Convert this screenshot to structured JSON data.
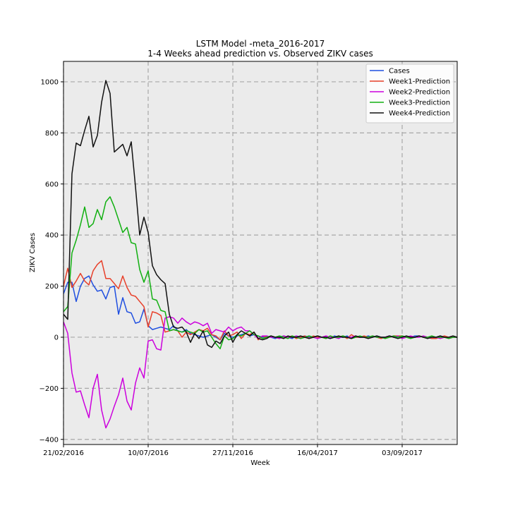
{
  "chart_data": {
    "type": "line",
    "title": "LSTM Model -meta_2016-2017",
    "subtitle": "1-4 Weeks ahead prediction vs. Observed ZIKV cases",
    "xlabel": "Week",
    "ylabel": "ZIKV Cases",
    "x_start": "21/02/2016",
    "x_step_days": 7,
    "x_ticks": [
      {
        "label": "21/02/2016",
        "index": 0
      },
      {
        "label": "10/07/2016",
        "index": 20
      },
      {
        "label": "27/11/2016",
        "index": 40
      },
      {
        "label": "16/04/2017",
        "index": 60
      },
      {
        "label": "03/09/2017",
        "index": 80
      }
    ],
    "xlim": [
      0,
      93
    ],
    "ylim": [
      -420,
      1080
    ],
    "y_ticks": [
      -400,
      -200,
      0,
      200,
      400,
      600,
      800,
      1000
    ],
    "grid": true,
    "legend_position": "top-right",
    "series": [
      {
        "name": "Cases",
        "color": "#1f4fe0",
        "values": [
          170,
          215,
          215,
          140,
          200,
          230,
          240,
          205,
          180,
          185,
          150,
          195,
          200,
          90,
          155,
          100,
          95,
          55,
          60,
          110,
          45,
          30,
          35,
          40,
          35,
          30,
          45,
          25,
          20,
          30,
          15,
          10,
          5,
          0,
          5,
          10,
          0,
          -10,
          15,
          5,
          0,
          5,
          10,
          15,
          5,
          10,
          5,
          0,
          5,
          0,
          -5,
          0,
          5,
          0,
          -5,
          5,
          0,
          5,
          0,
          0,
          5,
          0,
          0,
          -5,
          5,
          0,
          0,
          5,
          -5,
          0,
          0,
          0,
          5,
          0,
          5,
          0,
          0,
          5,
          0,
          0,
          5,
          0,
          0,
          5,
          5,
          0,
          0,
          -5,
          0,
          5,
          0,
          0,
          0,
          0
        ]
      },
      {
        "name": "Week1-Prediction",
        "color": "#e8402a",
        "values": [
          200,
          270,
          195,
          220,
          250,
          220,
          205,
          260,
          285,
          300,
          230,
          230,
          210,
          190,
          240,
          195,
          165,
          160,
          140,
          120,
          40,
          100,
          95,
          85,
          20,
          25,
          30,
          25,
          0,
          20,
          10,
          20,
          30,
          25,
          35,
          10,
          5,
          -10,
          25,
          5,
          10,
          20,
          -5,
          15,
          10,
          20,
          -10,
          5,
          0,
          5,
          0,
          -5,
          5,
          0,
          5,
          -5,
          0,
          5,
          -5,
          5,
          0,
          0,
          -5,
          5,
          0,
          0,
          5,
          -5,
          10,
          0,
          0,
          5,
          0,
          5,
          0,
          -5,
          0,
          0,
          5,
          5,
          5,
          0,
          0,
          0,
          5,
          0,
          0,
          -5,
          -5,
          0,
          5,
          0,
          0,
          0
        ]
      },
      {
        "name": "Week2-Prediction",
        "color": "#cc00dd",
        "values": [
          60,
          15,
          -140,
          -215,
          -210,
          -265,
          -315,
          -200,
          -145,
          -285,
          -355,
          -320,
          -270,
          -225,
          -160,
          -250,
          -285,
          -180,
          -120,
          -160,
          -15,
          -10,
          -45,
          -50,
          75,
          80,
          75,
          55,
          75,
          60,
          50,
          60,
          55,
          45,
          55,
          15,
          30,
          25,
          20,
          40,
          25,
          35,
          40,
          25,
          25,
          10,
          -5,
          5,
          5,
          0,
          0,
          -5,
          5,
          0,
          0,
          5,
          -5,
          0,
          5,
          0,
          -5,
          0,
          5,
          0,
          0,
          -5,
          5,
          0,
          0,
          5,
          0,
          0,
          -5,
          5,
          0,
          0,
          0,
          5,
          0,
          5,
          -5,
          0,
          5,
          0,
          0,
          5,
          0,
          0,
          0,
          -5,
          0,
          -5,
          0,
          0
        ]
      },
      {
        "name": "Week3-Prediction",
        "color": "#11b011",
        "values": [
          100,
          120,
          330,
          380,
          440,
          510,
          430,
          445,
          500,
          460,
          530,
          550,
          510,
          460,
          410,
          430,
          370,
          365,
          265,
          215,
          260,
          150,
          145,
          105,
          100,
          25,
          30,
          25,
          20,
          25,
          20,
          15,
          30,
          20,
          25,
          0,
          -25,
          -45,
          5,
          -10,
          -5,
          10,
          5,
          15,
          25,
          10,
          5,
          -5,
          0,
          5,
          0,
          5,
          0,
          -5,
          5,
          0,
          -5,
          0,
          5,
          0,
          5,
          0,
          -5,
          5,
          0,
          0,
          5,
          0,
          -5,
          0,
          5,
          0,
          0,
          5,
          0,
          0,
          -5,
          0,
          5,
          0,
          5,
          0,
          -5,
          0,
          5,
          0,
          0,
          5,
          0,
          0,
          0,
          -5,
          0,
          0
        ]
      },
      {
        "name": "Week4-Prediction",
        "color": "#111111",
        "values": [
          90,
          70,
          640,
          760,
          750,
          810,
          865,
          745,
          790,
          920,
          1005,
          955,
          725,
          740,
          755,
          710,
          765,
          590,
          400,
          470,
          410,
          280,
          245,
          225,
          210,
          90,
          40,
          35,
          40,
          20,
          -20,
          15,
          -5,
          25,
          -30,
          -40,
          -15,
          -25,
          5,
          20,
          -20,
          10,
          25,
          15,
          5,
          20,
          -5,
          -10,
          -5,
          5,
          0,
          0,
          -5,
          5,
          0,
          0,
          5,
          0,
          -5,
          0,
          5,
          0,
          0,
          -5,
          0,
          5,
          0,
          0,
          -5,
          5,
          0,
          0,
          -5,
          0,
          5,
          0,
          0,
          5,
          0,
          -5,
          0,
          5,
          0,
          0,
          5,
          0,
          -5,
          0,
          0,
          5,
          0,
          0,
          5,
          0
        ]
      }
    ]
  }
}
